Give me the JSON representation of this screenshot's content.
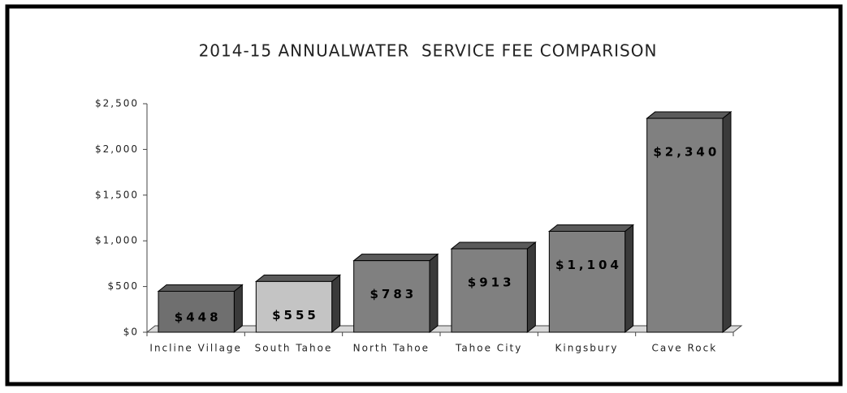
{
  "chart_data": {
    "type": "bar3d",
    "title": "2014-15 ANNUALWATER  SERVICE FEE COMPARISON",
    "categories": [
      "Incline Village",
      "South Tahoe",
      "North Tahoe",
      "Tahoe City",
      "Kingsbury",
      "Cave Rock"
    ],
    "values": [
      448,
      555,
      783,
      913,
      1104,
      2340
    ],
    "value_labels": [
      "$448",
      "$555",
      "$783",
      "$913",
      "$1,104",
      "$2,340"
    ],
    "colors": [
      "#6f6f6f",
      "#c4c4c4",
      "#808080",
      "#808080",
      "#808080",
      "#808080"
    ],
    "ylim": [
      0,
      2500
    ],
    "yticks": [
      {
        "value": 0,
        "label": "$0"
      },
      {
        "value": 500,
        "label": "$500"
      },
      {
        "value": 1000,
        "label": "$1,000"
      },
      {
        "value": 1500,
        "label": "$1,500"
      },
      {
        "value": 2000,
        "label": "$2,000"
      },
      {
        "value": 2500,
        "label": "$2,500"
      }
    ]
  }
}
